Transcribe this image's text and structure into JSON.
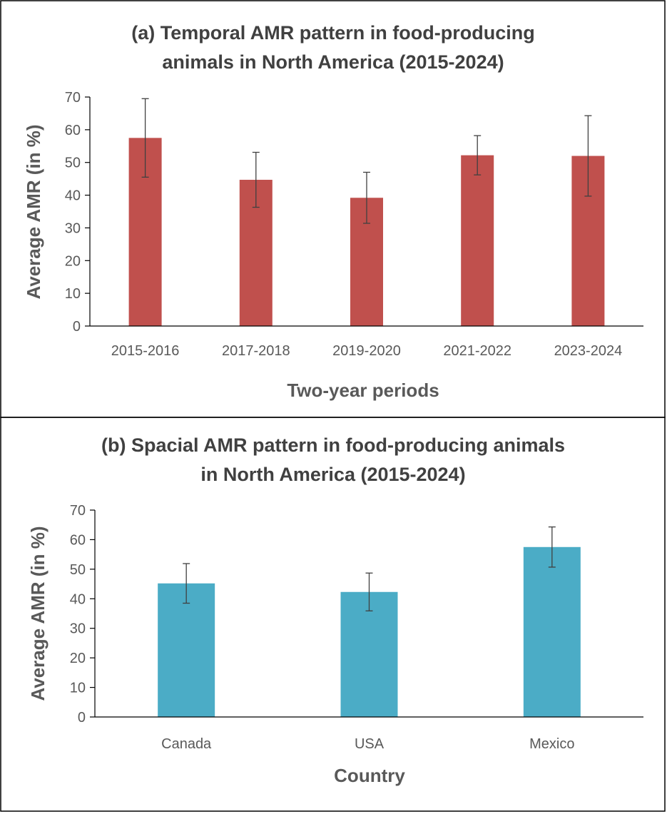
{
  "chart_data": [
    {
      "type": "bar",
      "title_lines": [
        "(a) Temporal AMR pattern in food-producing",
        "animals in North America (2015-2024)"
      ],
      "xlabel": "Two-year periods",
      "ylabel": "Average AMR (in %)",
      "categories": [
        "2015-2016",
        "2017-2018",
        "2019-2020",
        "2021-2022",
        "2023-2024"
      ],
      "values": [
        57.5,
        44.7,
        39.2,
        52.2,
        52.0
      ],
      "errors": [
        12.0,
        8.4,
        7.8,
        6.0,
        12.3
      ],
      "ylim": [
        0,
        70
      ],
      "yticks": [
        0,
        10,
        20,
        30,
        40,
        50,
        60,
        70
      ],
      "bar_color": "#c0504d",
      "grid": false
    },
    {
      "type": "bar",
      "title_lines": [
        "(b) Spacial AMR pattern in food-producing animals",
        "in North America (2015-2024)"
      ],
      "xlabel": "Country",
      "ylabel": "Average AMR (in %)",
      "categories": [
        "Canada",
        "USA",
        "Mexico"
      ],
      "values": [
        45.2,
        42.3,
        57.5
      ],
      "errors": [
        6.7,
        6.4,
        6.8
      ],
      "ylim": [
        0,
        70
      ],
      "yticks": [
        0,
        10,
        20,
        30,
        40,
        50,
        60,
        70
      ],
      "bar_color": "#4bacc6",
      "grid": false
    }
  ]
}
